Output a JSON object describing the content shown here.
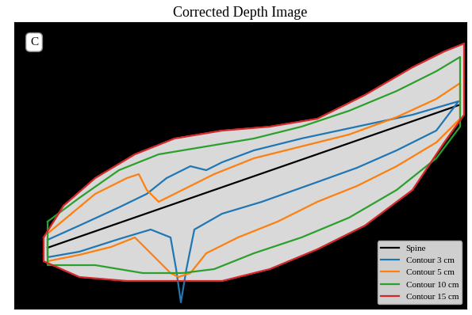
{
  "chart_data": {
    "type": "line",
    "title": "Corrected Depth Image",
    "annotations": [
      "C"
    ],
    "xlim": [
      18,
      588
    ],
    "ylim": [
      390,
      28
    ],
    "tick_labels": false,
    "legend": "lower right",
    "series": [
      {
        "name": "Spine",
        "color": "#000000",
        "x": [
          60,
          578
        ],
        "values": [
          313,
          133
        ]
      },
      {
        "name": "Contour 3 cm",
        "color": "#1f77b4",
        "x": [
          60,
          100,
          150,
          185,
          210,
          240,
          260,
          280,
          320,
          380,
          450,
          520,
          578,
          550,
          500,
          450,
          400,
          330,
          280,
          245,
          235,
          228,
          222,
          215,
          190,
          150,
          100,
          60,
          60
        ],
        "values": [
          303,
          285,
          262,
          245,
          225,
          210,
          215,
          205,
          190,
          175,
          160,
          145,
          128,
          165,
          190,
          212,
          230,
          255,
          270,
          290,
          340,
          382,
          340,
          300,
          290,
          302,
          318,
          325,
          303
        ]
      },
      {
        "name": "Contour 5 cm",
        "color": "#ff7f0e",
        "x": [
          60,
          90,
          120,
          160,
          175,
          185,
          200,
          230,
          270,
          320,
          380,
          440,
          500,
          550,
          580,
          580,
          550,
          500,
          450,
          400,
          350,
          300,
          260,
          240,
          225,
          215,
          200,
          170,
          140,
          100,
          60,
          60
        ],
        "values": [
          295,
          270,
          245,
          225,
          220,
          240,
          255,
          240,
          220,
          200,
          185,
          170,
          148,
          125,
          105,
          150,
          180,
          210,
          235,
          255,
          280,
          300,
          320,
          345,
          350,
          345,
          330,
          300,
          312,
          322,
          330,
          295
        ]
      },
      {
        "name": "Contour 10 cm",
        "color": "#2ca02c",
        "x": [
          60,
          100,
          150,
          200,
          260,
          320,
          380,
          440,
          500,
          550,
          580,
          580,
          550,
          500,
          440,
          380,
          320,
          270,
          230,
          180,
          120,
          60,
          60
        ],
        "values": [
          280,
          250,
          215,
          195,
          185,
          175,
          160,
          140,
          115,
          90,
          72,
          160,
          200,
          240,
          275,
          300,
          320,
          340,
          345,
          345,
          335,
          335,
          280
        ]
      },
      {
        "name": "Contour 15 cm",
        "color": "#d62728",
        "x": [
          55,
          80,
          120,
          170,
          220,
          280,
          340,
          400,
          460,
          520,
          560,
          585,
          585,
          560,
          520,
          460,
          400,
          340,
          280,
          220,
          160,
          100,
          55,
          55
        ],
        "values": [
          300,
          260,
          225,
          195,
          175,
          165,
          160,
          150,
          120,
          85,
          65,
          55,
          145,
          180,
          240,
          285,
          315,
          340,
          355,
          355,
          355,
          350,
          330,
          300
        ]
      }
    ]
  }
}
